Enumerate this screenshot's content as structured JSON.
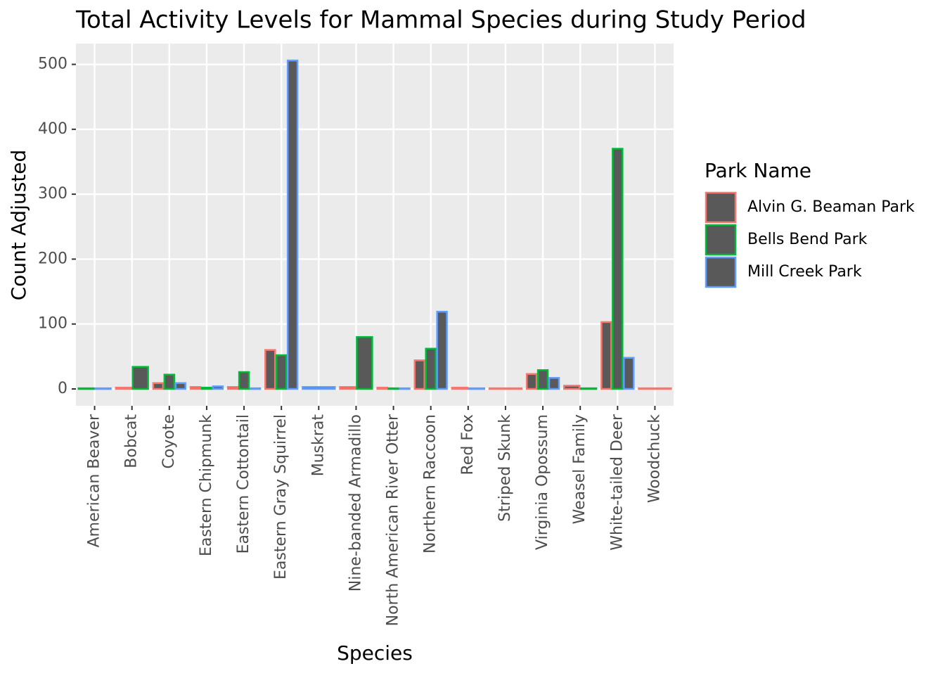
{
  "chart_data": {
    "type": "bar",
    "title": "Total Activity Levels for Mammal Species during Study Period",
    "x_label": "Species",
    "y_label": "Count Adjusted",
    "legend_title": "Park Name",
    "categories": [
      "American Beaver",
      "Bobcat",
      "Coyote",
      "Eastern Chipmunk",
      "Eastern Cottontail",
      "Eastern Gray Squirrel",
      "Muskrat",
      "Nine-banded Armadillo",
      "North American River Otter",
      "Northern Raccoon",
      "Red Fox",
      "Striped Skunk",
      "Virginia Opossum",
      "Weasel Family",
      "White-tailed Deer",
      "Woodchuck"
    ],
    "series": [
      {
        "name": "Alvin G. Beaman Park",
        "color": "#f8766d",
        "values": [
          null,
          2,
          9,
          3,
          3,
          60,
          null,
          3,
          2,
          44,
          2,
          1,
          23,
          5,
          103,
          1
        ]
      },
      {
        "name": "Bells Bend Park",
        "color": "#00ba38",
        "values": [
          1,
          34,
          22,
          2,
          26,
          52,
          null,
          80,
          1,
          62,
          null,
          null,
          29,
          1,
          370,
          null
        ]
      },
      {
        "name": "Mill Creek Park",
        "color": "#619cff",
        "values": [
          1,
          null,
          9,
          4,
          1,
          506,
          3,
          null,
          1,
          119,
          1,
          null,
          17,
          null,
          48,
          null
        ]
      }
    ],
    "bar_fill": "#595959",
    "ylim": [
      -26,
      532
    ],
    "yticks": [
      0,
      100,
      200,
      300,
      400,
      500
    ],
    "grid": true,
    "legend_position": "right"
  }
}
